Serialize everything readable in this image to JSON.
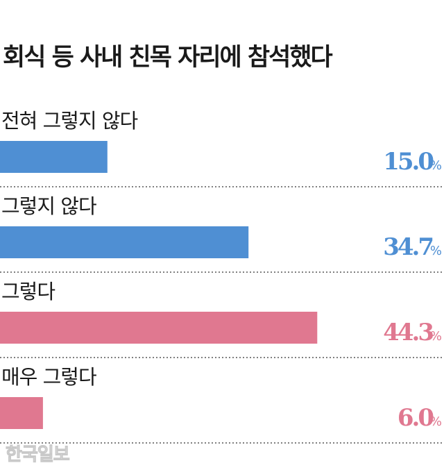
{
  "title": "회식 등 사내 친목 자리에 참석했다",
  "source": "한국일보",
  "colors": {
    "negative": "#4f8fd3",
    "positive": "#e07890",
    "divider": "#555555"
  },
  "chart_data": {
    "type": "bar",
    "orientation": "horizontal",
    "categories": [
      "전혀 그렇지 않다",
      "그렇지 않다",
      "그렇다",
      "매우 그렇다"
    ],
    "values": [
      15.0,
      34.7,
      44.3,
      6.0
    ],
    "value_labels": [
      "15.0",
      "34.7",
      "44.3",
      "6.0"
    ],
    "unit": "%",
    "bar_colors": [
      "#4f8fd3",
      "#4f8fd3",
      "#e07890",
      "#e07890"
    ],
    "xlim": [
      0,
      62
    ],
    "grid": false,
    "legend": "none"
  }
}
